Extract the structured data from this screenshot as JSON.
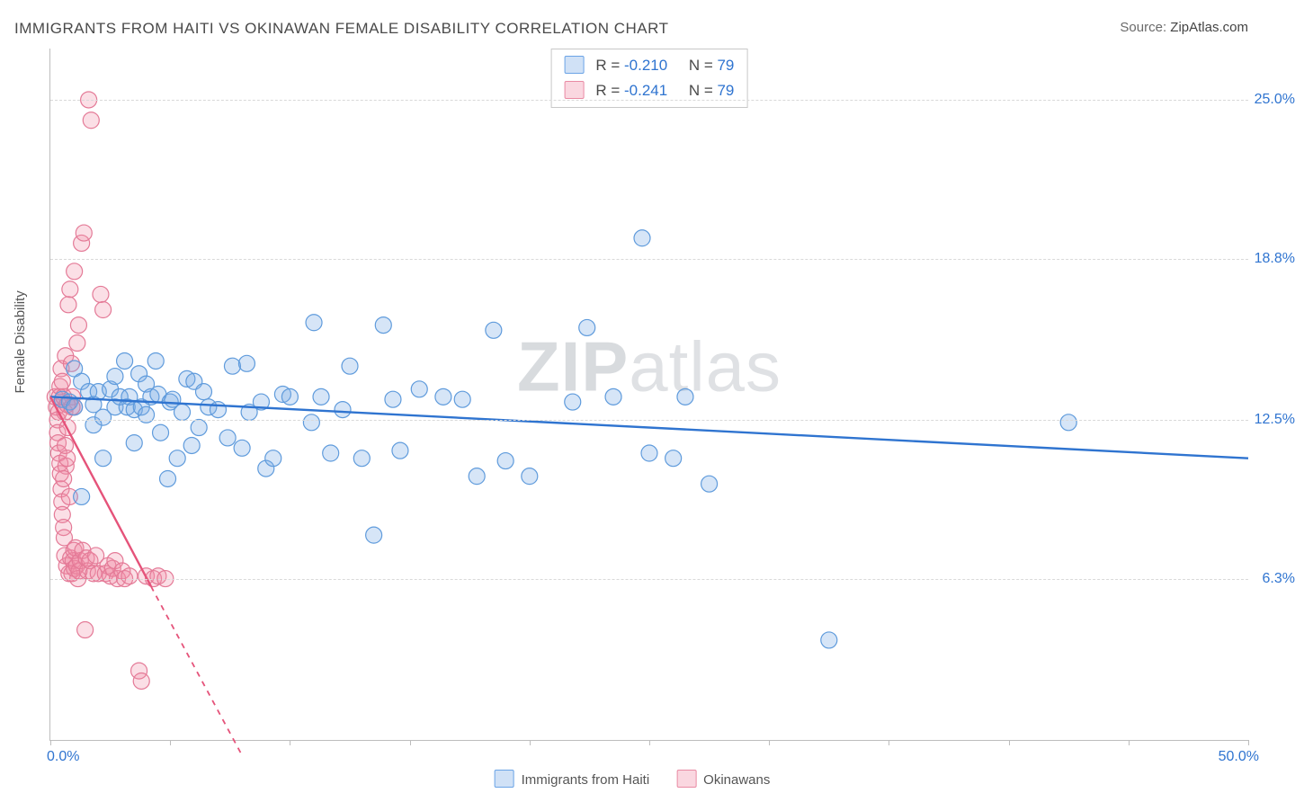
{
  "title": "IMMIGRANTS FROM HAITI VS OKINAWAN FEMALE DISABILITY CORRELATION CHART",
  "source_label": "Source: ",
  "source_value": "ZipAtlas.com",
  "watermark_left": "ZIP",
  "watermark_right": "atlas",
  "y_axis_title": "Female Disability",
  "legend_bottom": {
    "series_a": "Immigrants from Haiti",
    "series_b": "Okinawans"
  },
  "stats": {
    "a": {
      "R_label": "R = ",
      "R": "-0.210",
      "N_label": "N = ",
      "N": "79"
    },
    "b": {
      "R_label": "R = ",
      "R": "-0.241",
      "N_label": "N = ",
      "N": "79"
    }
  },
  "axes": {
    "x": {
      "min": 0.0,
      "max": 50.0,
      "min_label": "0.0%",
      "max_label": "50.0%",
      "tick_positions_pct": [
        0,
        10,
        20,
        30,
        40,
        50,
        60,
        70,
        80,
        90,
        100
      ]
    },
    "y": {
      "min": 0.0,
      "max": 27.0,
      "grid": [
        {
          "v": 6.3,
          "label": "6.3%"
        },
        {
          "v": 12.5,
          "label": "12.5%"
        },
        {
          "v": 18.8,
          "label": "18.8%"
        },
        {
          "v": 25.0,
          "label": "25.0%"
        }
      ]
    }
  },
  "colors": {
    "blue_fill": "rgba(120,170,230,0.30)",
    "blue_stroke": "#5f9bdc",
    "blue_line": "#2f74d0",
    "pink_fill": "rgba(240,140,165,0.28)",
    "pink_stroke": "#e47a97",
    "pink_line": "#e5537a",
    "grid": "#d9d9d9",
    "frame": "#bdbdbd",
    "text": "#4a4a4a",
    "tick_label": "#2f74d0"
  },
  "style": {
    "marker_radius": 9,
    "marker_stroke_width": 1.2,
    "reg_line_width": 2.4,
    "reg_dash_width": 1.8
  },
  "series": {
    "blue": {
      "points": [
        [
          0.5,
          13.3
        ],
        [
          0.8,
          13.2
        ],
        [
          1.0,
          14.5
        ],
        [
          1.0,
          13.0
        ],
        [
          1.3,
          14.0
        ],
        [
          1.3,
          9.5
        ],
        [
          1.6,
          13.6
        ],
        [
          1.8,
          12.3
        ],
        [
          1.8,
          13.1
        ],
        [
          2.0,
          13.6
        ],
        [
          2.2,
          12.6
        ],
        [
          2.2,
          11.0
        ],
        [
          2.5,
          13.7
        ],
        [
          2.7,
          13.0
        ],
        [
          2.7,
          14.2
        ],
        [
          2.9,
          13.4
        ],
        [
          3.1,
          14.8
        ],
        [
          3.2,
          13.0
        ],
        [
          3.3,
          13.4
        ],
        [
          3.5,
          11.6
        ],
        [
          3.5,
          12.9
        ],
        [
          3.7,
          14.3
        ],
        [
          3.8,
          13.0
        ],
        [
          4.0,
          13.9
        ],
        [
          4.0,
          12.7
        ],
        [
          4.2,
          13.4
        ],
        [
          4.4,
          14.8
        ],
        [
          4.5,
          13.5
        ],
        [
          4.6,
          12.0
        ],
        [
          4.9,
          10.2
        ],
        [
          5.0,
          13.2
        ],
        [
          5.1,
          13.3
        ],
        [
          5.3,
          11.0
        ],
        [
          5.5,
          12.8
        ],
        [
          5.7,
          14.1
        ],
        [
          5.9,
          11.5
        ],
        [
          6.0,
          14.0
        ],
        [
          6.2,
          12.2
        ],
        [
          6.4,
          13.6
        ],
        [
          6.6,
          13.0
        ],
        [
          7.0,
          12.9
        ],
        [
          7.4,
          11.8
        ],
        [
          7.6,
          14.6
        ],
        [
          8.0,
          11.4
        ],
        [
          8.2,
          14.7
        ],
        [
          8.3,
          12.8
        ],
        [
          8.8,
          13.2
        ],
        [
          9.0,
          10.6
        ],
        [
          9.3,
          11.0
        ],
        [
          9.7,
          13.5
        ],
        [
          10.0,
          13.4
        ],
        [
          10.9,
          12.4
        ],
        [
          11.0,
          16.3
        ],
        [
          11.3,
          13.4
        ],
        [
          11.7,
          11.2
        ],
        [
          12.2,
          12.9
        ],
        [
          12.5,
          14.6
        ],
        [
          13.0,
          11.0
        ],
        [
          13.5,
          8.0
        ],
        [
          13.9,
          16.2
        ],
        [
          14.3,
          13.3
        ],
        [
          14.6,
          11.3
        ],
        [
          15.4,
          13.7
        ],
        [
          16.4,
          13.4
        ],
        [
          17.2,
          13.3
        ],
        [
          17.8,
          10.3
        ],
        [
          18.5,
          16.0
        ],
        [
          19.0,
          10.9
        ],
        [
          20.0,
          10.3
        ],
        [
          21.8,
          13.2
        ],
        [
          22.4,
          16.1
        ],
        [
          23.5,
          13.4
        ],
        [
          24.7,
          19.6
        ],
        [
          25.0,
          11.2
        ],
        [
          26.0,
          11.0
        ],
        [
          26.5,
          13.4
        ],
        [
          27.5,
          10.0
        ],
        [
          32.5,
          3.9
        ],
        [
          42.5,
          12.4
        ]
      ],
      "reg": {
        "x1": 0,
        "y1": 13.4,
        "x2": 50,
        "y2": 11.0
      }
    },
    "pink": {
      "points": [
        [
          0.2,
          13.4
        ],
        [
          0.25,
          13.0
        ],
        [
          0.3,
          12.5
        ],
        [
          0.3,
          12.0
        ],
        [
          0.32,
          11.6
        ],
        [
          0.35,
          11.2
        ],
        [
          0.35,
          12.8
        ],
        [
          0.38,
          13.4
        ],
        [
          0.4,
          13.8
        ],
        [
          0.4,
          10.8
        ],
        [
          0.42,
          10.4
        ],
        [
          0.45,
          9.8
        ],
        [
          0.45,
          14.5
        ],
        [
          0.48,
          9.3
        ],
        [
          0.5,
          8.8
        ],
        [
          0.5,
          14.0
        ],
        [
          0.55,
          8.3
        ],
        [
          0.55,
          13.4
        ],
        [
          0.58,
          7.9
        ],
        [
          0.6,
          7.2
        ],
        [
          0.6,
          12.8
        ],
        [
          0.62,
          11.5
        ],
        [
          0.63,
          15.0
        ],
        [
          0.65,
          10.7
        ],
        [
          0.68,
          6.8
        ],
        [
          0.7,
          11.0
        ],
        [
          0.72,
          12.2
        ],
        [
          0.75,
          17.0
        ],
        [
          0.78,
          6.5
        ],
        [
          0.8,
          9.5
        ],
        [
          0.82,
          17.6
        ],
        [
          0.85,
          7.1
        ],
        [
          0.88,
          14.7
        ],
        [
          0.9,
          6.5
        ],
        [
          0.92,
          13.4
        ],
        [
          0.95,
          7.0
        ],
        [
          0.98,
          7.4
        ],
        [
          1.0,
          6.7
        ],
        [
          1.0,
          18.3
        ],
        [
          1.05,
          7.5
        ],
        [
          1.1,
          6.8
        ],
        [
          1.12,
          15.5
        ],
        [
          1.15,
          6.3
        ],
        [
          1.18,
          16.2
        ],
        [
          1.2,
          6.6
        ],
        [
          1.25,
          7.0
        ],
        [
          1.3,
          19.4
        ],
        [
          1.35,
          7.4
        ],
        [
          1.4,
          19.8
        ],
        [
          1.45,
          4.3
        ],
        [
          1.5,
          7.1
        ],
        [
          1.55,
          6.6
        ],
        [
          1.6,
          25.0
        ],
        [
          1.65,
          7.0
        ],
        [
          1.7,
          24.2
        ],
        [
          1.8,
          6.5
        ],
        [
          1.9,
          7.2
        ],
        [
          2.0,
          6.5
        ],
        [
          2.1,
          17.4
        ],
        [
          2.2,
          16.8
        ],
        [
          2.3,
          6.5
        ],
        [
          2.4,
          6.8
        ],
        [
          2.5,
          6.4
        ],
        [
          2.6,
          6.7
        ],
        [
          2.7,
          7.0
        ],
        [
          2.8,
          6.3
        ],
        [
          3.0,
          6.6
        ],
        [
          3.1,
          6.3
        ],
        [
          3.3,
          6.4
        ],
        [
          3.7,
          2.7
        ],
        [
          3.8,
          2.3
        ],
        [
          4.0,
          6.4
        ],
        [
          4.3,
          6.3
        ],
        [
          4.5,
          6.4
        ],
        [
          4.8,
          6.3
        ],
        [
          1.0,
          13.0
        ],
        [
          0.7,
          13.1
        ],
        [
          0.9,
          13.0
        ],
        [
          0.55,
          10.2
        ]
      ],
      "reg_solid": {
        "x1": 0,
        "y1": 13.4,
        "x2": 4.2,
        "y2": 6.0
      },
      "reg_dash": {
        "x1": 4.2,
        "y1": 6.0,
        "x2": 8.0,
        "y2": -0.6
      }
    }
  }
}
